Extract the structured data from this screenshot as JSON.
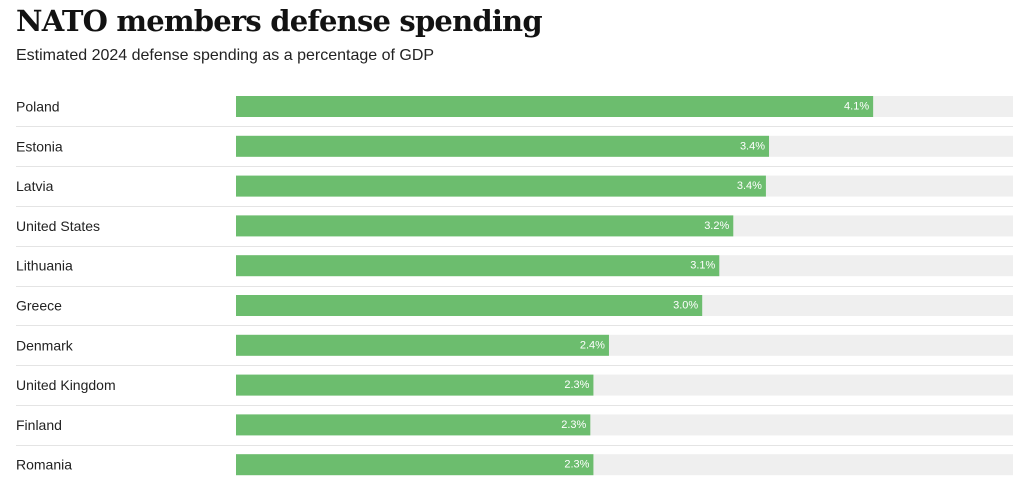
{
  "colors": {
    "bar": "#6cbd6e",
    "track": "#efefef",
    "divider": "#e4e4e4"
  },
  "chart_data": {
    "type": "bar",
    "orientation": "horizontal",
    "title": "NATO members defense spending",
    "subtitle": "Estimated 2024 defense spending as a percentage of GDP",
    "xlim": [
      0,
      5
    ],
    "grid": false,
    "categories": [
      "Poland",
      "Estonia",
      "Latvia",
      "United States",
      "Lithuania",
      "Greece",
      "Denmark",
      "United Kingdom",
      "Finland",
      "Romania"
    ],
    "values": [
      4.1,
      3.43,
      3.41,
      3.2,
      3.11,
      3.0,
      2.4,
      2.3,
      2.28,
      2.3
    ],
    "value_labels": [
      "4.1%",
      "3.4%",
      "3.4%",
      "3.2%",
      "3.1%",
      "3.0%",
      "2.4%",
      "2.3%",
      "2.3%",
      "2.3%"
    ]
  }
}
